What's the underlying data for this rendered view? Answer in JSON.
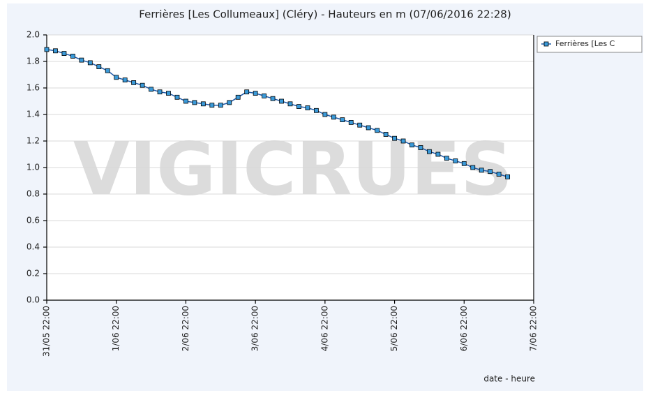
{
  "chart_data": {
    "type": "line",
    "title": "Ferrières [Les Collumeaux] (Cléry) - Hauteurs en m (07/06/2016 22:28)",
    "xlabel": "date - heure",
    "watermark": "VIGICRUES",
    "x": [
      "31/05 22:00",
      "1/06 01:00",
      "1/06 04:00",
      "1/06 07:00",
      "1/06 10:00",
      "1/06 13:00",
      "1/06 16:00",
      "1/06 19:00",
      "1/06 22:00",
      "2/06 01:00",
      "2/06 04:00",
      "2/06 07:00",
      "2/06 10:00",
      "2/06 13:00",
      "2/06 16:00",
      "2/06 19:00",
      "2/06 22:00",
      "3/06 01:00",
      "3/06 04:00",
      "3/06 07:00",
      "3/06 10:00",
      "3/06 13:00",
      "3/06 16:00",
      "3/06 19:00",
      "3/06 22:00",
      "4/06 01:00",
      "4/06 04:00",
      "4/06 07:00",
      "4/06 10:00",
      "4/06 13:00",
      "4/06 16:00",
      "4/06 19:00",
      "4/06 22:00",
      "5/06 01:00",
      "5/06 04:00",
      "5/06 07:00",
      "5/06 10:00",
      "5/06 13:00",
      "5/06 16:00",
      "5/06 19:00",
      "5/06 22:00",
      "6/06 01:00",
      "6/06 04:00",
      "6/06 07:00",
      "6/06 10:00",
      "6/06 13:00",
      "6/06 16:00",
      "6/06 19:00",
      "6/06 22:00",
      "7/06 01:00",
      "7/06 04:00",
      "7/06 07:00",
      "7/06 10:00",
      "7/06 13:00"
    ],
    "series": [
      {
        "name": "Ferrières [Les C",
        "color": "#1e5aa8",
        "marker_color": "#3a9ad9",
        "values": [
          1.89,
          1.88,
          1.86,
          1.84,
          1.81,
          1.79,
          1.76,
          1.73,
          1.68,
          1.66,
          1.64,
          1.62,
          1.59,
          1.57,
          1.56,
          1.53,
          1.5,
          1.49,
          1.48,
          1.47,
          1.47,
          1.49,
          1.53,
          1.57,
          1.56,
          1.54,
          1.52,
          1.5,
          1.48,
          1.46,
          1.45,
          1.43,
          1.4,
          1.38,
          1.36,
          1.34,
          1.32,
          1.3,
          1.28,
          1.25,
          1.22,
          1.2,
          1.17,
          1.15,
          1.12,
          1.1,
          1.07,
          1.05,
          1.03,
          1.0,
          0.98,
          0.97,
          0.95,
          0.93
        ]
      }
    ],
    "xlim": [
      "31/05 22:00",
      "7/06 22:00"
    ],
    "xticks": [
      "31/05 22:00",
      "1/06 22:00",
      "2/06 22:00",
      "3/06 22:00",
      "4/06 22:00",
      "5/06 22:00",
      "6/06 22:00",
      "7/06 22:00"
    ],
    "ylim": [
      0,
      2
    ],
    "yticks": [
      {
        "value": 0,
        "label": "0.0"
      },
      0.2,
      0.4,
      0.6,
      0.8,
      {
        "value": 1,
        "label": "1.0"
      },
      1.2,
      1.4,
      1.6,
      1.8,
      {
        "value": 2,
        "label": "2.0"
      }
    ],
    "grid": true,
    "legend": "right"
  }
}
